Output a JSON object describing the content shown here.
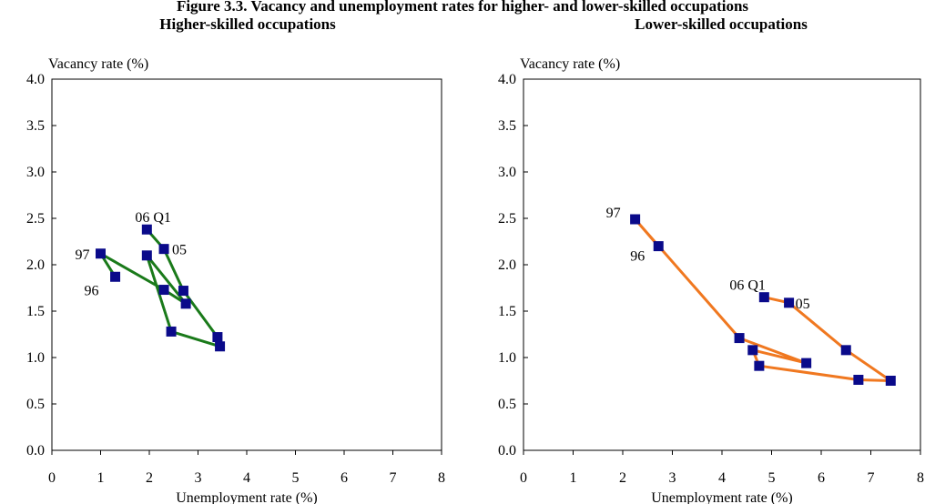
{
  "header": {
    "title": "Figure 3.3. Vacancy and unemployment rates for higher- and lower-skilled occupations"
  },
  "chart_data": [
    {
      "type": "line",
      "title": "Higher-skilled occupations",
      "xlabel": "Unemployment rate (%)",
      "ylabel": "Vacancy rate (%)",
      "xlim": [
        0,
        8
      ],
      "ylim": [
        0,
        4
      ],
      "xticks": [
        "0",
        "1",
        "2",
        "3",
        "4",
        "5",
        "6",
        "7",
        "8"
      ],
      "yticks": [
        "0.0",
        "0.5",
        "1.0",
        "1.5",
        "2.0",
        "2.5",
        "3.0",
        "3.5",
        "4.0"
      ],
      "grid": false,
      "line_color": "#1a7a1a",
      "marker_color": "#0a0a8a",
      "series": [
        {
          "points": [
            {
              "x": 1.3,
              "y": 1.87
            },
            {
              "x": 1.0,
              "y": 2.12
            },
            {
              "x": 2.3,
              "y": 1.73
            },
            {
              "x": 2.75,
              "y": 1.58
            },
            {
              "x": 1.95,
              "y": 2.1
            },
            {
              "x": 2.45,
              "y": 1.28
            },
            {
              "x": 3.45,
              "y": 1.12
            },
            {
              "x": 3.4,
              "y": 1.22
            },
            {
              "x": 2.7,
              "y": 1.72
            },
            {
              "x": 2.3,
              "y": 2.17
            },
            {
              "x": 1.95,
              "y": 2.38
            }
          ]
        }
      ],
      "annotations": [
        {
          "text": "97",
          "x": 1.0,
          "y": 2.12
        },
        {
          "text": "96",
          "x": 1.3,
          "y": 1.87
        },
        {
          "text": "05",
          "x": 2.3,
          "y": 2.17
        },
        {
          "text": "06 Q1",
          "x": 1.95,
          "y": 2.38
        }
      ]
    },
    {
      "type": "line",
      "title": "Lower-skilled occupations",
      "xlabel": "Unemployment rate (%)",
      "ylabel": "Vacancy rate (%)",
      "xlim": [
        0,
        8
      ],
      "ylim": [
        0,
        4
      ],
      "xticks": [
        "0",
        "1",
        "2",
        "3",
        "4",
        "5",
        "6",
        "7",
        "8"
      ],
      "yticks": [
        "0.0",
        "0.5",
        "1.0",
        "1.5",
        "2.0",
        "2.5",
        "3.0",
        "3.5",
        "4.0"
      ],
      "grid": false,
      "line_color": "#f07820",
      "marker_color": "#0a0a8a",
      "series": [
        {
          "points": [
            {
              "x": 2.72,
              "y": 2.2
            },
            {
              "x": 2.25,
              "y": 2.49
            },
            {
              "x": 4.35,
              "y": 1.21
            },
            {
              "x": 5.7,
              "y": 0.94
            },
            {
              "x": 4.62,
              "y": 1.08
            },
            {
              "x": 4.75,
              "y": 0.91
            },
            {
              "x": 6.75,
              "y": 0.76
            },
            {
              "x": 7.4,
              "y": 0.75
            },
            {
              "x": 6.5,
              "y": 1.08
            },
            {
              "x": 5.35,
              "y": 1.59
            },
            {
              "x": 4.85,
              "y": 1.65
            }
          ]
        }
      ],
      "annotations": [
        {
          "text": "97",
          "x": 2.25,
          "y": 2.49
        },
        {
          "text": "96",
          "x": 2.72,
          "y": 2.2
        },
        {
          "text": "06 Q1",
          "x": 4.85,
          "y": 1.65
        },
        {
          "text": "05",
          "x": 5.35,
          "y": 1.59
        }
      ]
    }
  ]
}
